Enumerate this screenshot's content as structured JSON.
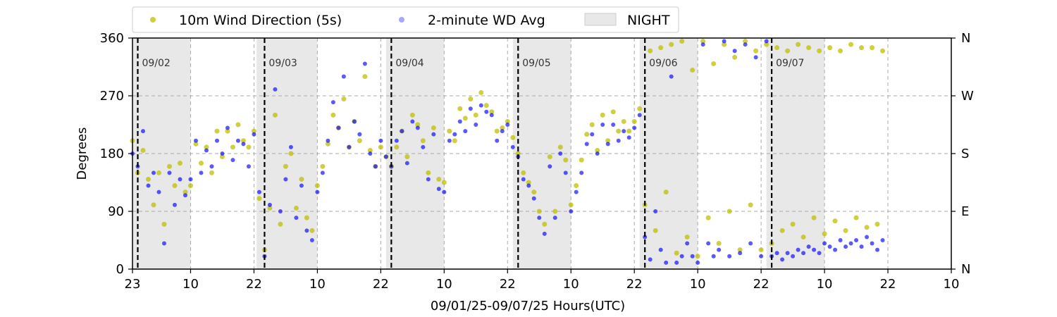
{
  "chart_data": {
    "type": "scatter",
    "xlabel": "09/01/25-09/07/25  Hours(UTC)",
    "ylabel": "Degrees",
    "ylim": [
      0,
      360
    ],
    "xlim_hours_since_first_tick": [
      0,
      155
    ],
    "x_tick_labels": [
      "23",
      "10",
      "22",
      "10",
      "22",
      "10",
      "22",
      "10",
      "22",
      "10",
      "22",
      "10",
      "22",
      "10"
    ],
    "x_tick_hours": [
      0,
      11,
      23,
      35,
      47,
      59,
      71,
      83,
      95,
      107,
      119,
      131,
      143,
      155
    ],
    "y_ticks": [
      0,
      90,
      180,
      270,
      360
    ],
    "y_tick_labels": [
      "0",
      "90",
      "180",
      "270",
      "360"
    ],
    "right_axis_labels": [
      "N",
      "E",
      "S",
      "W",
      "N"
    ],
    "grid": true,
    "legend_position": "top",
    "legend": [
      "10m Wind Direction (5s)",
      "2-minute WD Avg",
      "NIGHT"
    ],
    "day_labels": [
      "09/02",
      "09/03",
      "09/04",
      "09/05",
      "09/06",
      "09/07"
    ],
    "day_boundary_hours": [
      1,
      25,
      49,
      73,
      97,
      121
    ],
    "night_periods_hours": [
      [
        0,
        11
      ],
      [
        23.5,
        35
      ],
      [
        48,
        59
      ],
      [
        72,
        83
      ],
      [
        96,
        107
      ],
      [
        120,
        131
      ]
    ],
    "series": [
      {
        "name": "10m Wind Direction (5s)",
        "color": "#bfbf00",
        "points": [
          [
            0,
            200
          ],
          [
            1,
            150
          ],
          [
            2,
            185
          ],
          [
            3,
            140
          ],
          [
            4,
            100
          ],
          [
            5,
            150
          ],
          [
            6,
            70
          ],
          [
            7,
            160
          ],
          [
            8,
            130
          ],
          [
            9,
            165
          ],
          [
            10,
            120
          ],
          [
            11,
            130
          ],
          [
            12,
            195
          ],
          [
            13,
            165
          ],
          [
            14,
            190
          ],
          [
            15,
            150
          ],
          [
            16,
            215
          ],
          [
            17,
            175
          ],
          [
            18,
            215
          ],
          [
            19,
            190
          ],
          [
            20,
            225
          ],
          [
            21,
            200
          ],
          [
            22,
            190
          ],
          [
            23,
            215
          ],
          [
            24,
            110
          ],
          [
            25,
            30
          ],
          [
            26,
            95
          ],
          [
            27,
            240
          ],
          [
            28,
            70
          ],
          [
            29,
            160
          ],
          [
            30,
            180
          ],
          [
            31,
            95
          ],
          [
            32,
            140
          ],
          [
            33,
            80
          ],
          [
            34,
            60
          ],
          [
            35,
            130
          ],
          [
            36,
            160
          ],
          [
            37,
            195
          ],
          [
            38,
            240
          ],
          [
            39,
            220
          ],
          [
            40,
            265
          ],
          [
            41,
            190
          ],
          [
            42,
            230
          ],
          [
            43,
            200
          ],
          [
            44,
            300
          ],
          [
            45,
            185
          ],
          [
            46,
            160
          ],
          [
            47,
            190
          ],
          [
            48,
            175
          ],
          [
            49,
            160
          ],
          [
            50,
            190
          ],
          [
            51,
            215
          ],
          [
            52,
            175
          ],
          [
            53,
            240
          ],
          [
            54,
            225
          ],
          [
            55,
            200
          ],
          [
            56,
            150
          ],
          [
            57,
            220
          ],
          [
            58,
            140
          ],
          [
            59,
            135
          ],
          [
            60,
            215
          ],
          [
            61,
            200
          ],
          [
            62,
            250
          ],
          [
            63,
            235
          ],
          [
            64,
            265
          ],
          [
            65,
            240
          ],
          [
            66,
            275
          ],
          [
            67,
            255
          ],
          [
            68,
            245
          ],
          [
            69,
            215
          ],
          [
            70,
            220
          ],
          [
            71,
            230
          ],
          [
            72,
            205
          ],
          [
            73,
            180
          ],
          [
            74,
            150
          ],
          [
            75,
            135
          ],
          [
            76,
            120
          ],
          [
            77,
            90
          ],
          [
            78,
            70
          ],
          [
            79,
            175
          ],
          [
            80,
            90
          ],
          [
            81,
            190
          ],
          [
            82,
            170
          ],
          [
            83,
            100
          ],
          [
            84,
            130
          ],
          [
            85,
            170
          ],
          [
            86,
            210
          ],
          [
            87,
            225
          ],
          [
            88,
            185
          ],
          [
            89,
            240
          ],
          [
            90,
            200
          ],
          [
            91,
            245
          ],
          [
            92,
            215
          ],
          [
            93,
            230
          ],
          [
            94,
            215
          ],
          [
            95,
            230
          ],
          [
            96,
            250
          ],
          [
            97,
            100
          ],
          [
            98,
            340
          ],
          [
            99,
            60
          ],
          [
            100,
            345
          ],
          [
            101,
            120
          ],
          [
            102,
            350
          ],
          [
            103,
            25
          ],
          [
            104,
            355
          ],
          [
            105,
            50
          ],
          [
            106,
            310
          ],
          [
            107,
            20
          ],
          [
            108,
            355
          ],
          [
            109,
            80
          ],
          [
            110,
            320
          ],
          [
            111,
            40
          ],
          [
            112,
            350
          ],
          [
            113,
            90
          ],
          [
            114,
            330
          ],
          [
            115,
            30
          ],
          [
            116,
            355
          ],
          [
            117,
            100
          ],
          [
            118,
            340
          ],
          [
            119,
            30
          ],
          [
            120,
            350
          ],
          [
            121,
            40
          ],
          [
            122,
            345
          ],
          [
            123,
            60
          ],
          [
            124,
            340
          ],
          [
            125,
            70
          ],
          [
            126,
            350
          ],
          [
            127,
            50
          ],
          [
            128,
            345
          ],
          [
            129,
            80
          ],
          [
            130,
            340
          ],
          [
            131,
            55
          ],
          [
            132,
            345
          ],
          [
            133,
            75
          ],
          [
            134,
            340
          ],
          [
            135,
            60
          ],
          [
            136,
            350
          ],
          [
            137,
            80
          ],
          [
            138,
            345
          ],
          [
            139,
            65
          ],
          [
            140,
            345
          ],
          [
            141,
            70
          ],
          [
            142,
            340
          ]
        ]
      },
      {
        "name": "2-minute WD Avg",
        "color": "#0000ff",
        "points": [
          [
            0,
            180
          ],
          [
            1,
            160
          ],
          [
            2,
            215
          ],
          [
            3,
            130
          ],
          [
            4,
            150
          ],
          [
            5,
            120
          ],
          [
            6,
            40
          ],
          [
            7,
            150
          ],
          [
            8,
            100
          ],
          [
            9,
            140
          ],
          [
            10,
            115
          ],
          [
            11,
            140
          ],
          [
            12,
            200
          ],
          [
            13,
            150
          ],
          [
            14,
            185
          ],
          [
            15,
            160
          ],
          [
            16,
            200
          ],
          [
            17,
            180
          ],
          [
            18,
            220
          ],
          [
            19,
            170
          ],
          [
            20,
            200
          ],
          [
            21,
            195
          ],
          [
            22,
            160
          ],
          [
            23,
            210
          ],
          [
            24,
            120
          ],
          [
            25,
            20
          ],
          [
            26,
            100
          ],
          [
            27,
            280
          ],
          [
            28,
            90
          ],
          [
            29,
            140
          ],
          [
            30,
            190
          ],
          [
            31,
            80
          ],
          [
            32,
            130
          ],
          [
            33,
            60
          ],
          [
            34,
            45
          ],
          [
            35,
            120
          ],
          [
            36,
            150
          ],
          [
            37,
            200
          ],
          [
            38,
            260
          ],
          [
            39,
            220
          ],
          [
            40,
            300
          ],
          [
            41,
            190
          ],
          [
            42,
            230
          ],
          [
            43,
            210
          ],
          [
            44,
            320
          ],
          [
            45,
            180
          ],
          [
            46,
            160
          ],
          [
            47,
            200
          ],
          [
            48,
            175
          ],
          [
            49,
            160
          ],
          [
            50,
            200
          ],
          [
            51,
            215
          ],
          [
            52,
            165
          ],
          [
            53,
            230
          ],
          [
            54,
            220
          ],
          [
            55,
            190
          ],
          [
            56,
            140
          ],
          [
            57,
            210
          ],
          [
            58,
            125
          ],
          [
            59,
            120
          ],
          [
            60,
            200
          ],
          [
            61,
            210
          ],
          [
            62,
            230
          ],
          [
            63,
            215
          ],
          [
            64,
            250
          ],
          [
            65,
            225
          ],
          [
            66,
            255
          ],
          [
            67,
            245
          ],
          [
            68,
            240
          ],
          [
            69,
            200
          ],
          [
            70,
            215
          ],
          [
            71,
            225
          ],
          [
            72,
            190
          ],
          [
            73,
            175
          ],
          [
            74,
            140
          ],
          [
            75,
            130
          ],
          [
            76,
            110
          ],
          [
            77,
            80
          ],
          [
            78,
            55
          ],
          [
            79,
            160
          ],
          [
            80,
            80
          ],
          [
            81,
            180
          ],
          [
            82,
            150
          ],
          [
            83,
            90
          ],
          [
            84,
            120
          ],
          [
            85,
            150
          ],
          [
            86,
            195
          ],
          [
            87,
            210
          ],
          [
            88,
            180
          ],
          [
            89,
            225
          ],
          [
            90,
            195
          ],
          [
            91,
            225
          ],
          [
            92,
            200
          ],
          [
            93,
            215
          ],
          [
            94,
            205
          ],
          [
            95,
            220
          ],
          [
            96,
            240
          ],
          [
            97,
            50
          ],
          [
            98,
            15
          ],
          [
            99,
            90
          ],
          [
            100,
            30
          ],
          [
            101,
            10
          ],
          [
            102,
            300
          ],
          [
            103,
            10
          ],
          [
            104,
            20
          ],
          [
            105,
            40
          ],
          [
            106,
            20
          ],
          [
            107,
            10
          ],
          [
            108,
            350
          ],
          [
            109,
            40
          ],
          [
            110,
            20
          ],
          [
            111,
            30
          ],
          [
            112,
            355
          ],
          [
            113,
            20
          ],
          [
            114,
            340
          ],
          [
            115,
            25
          ],
          [
            116,
            350
          ],
          [
            117,
            40
          ],
          [
            118,
            330
          ],
          [
            119,
            20
          ],
          [
            120,
            355
          ],
          [
            121,
            20
          ],
          [
            122,
            25
          ],
          [
            123,
            15
          ],
          [
            124,
            25
          ],
          [
            125,
            20
          ],
          [
            126,
            30
          ],
          [
            127,
            25
          ],
          [
            128,
            35
          ],
          [
            129,
            30
          ],
          [
            130,
            25
          ],
          [
            131,
            40
          ],
          [
            132,
            35
          ],
          [
            133,
            30
          ],
          [
            134,
            45
          ],
          [
            135,
            35
          ],
          [
            136,
            40
          ],
          [
            137,
            45
          ],
          [
            138,
            35
          ],
          [
            139,
            50
          ],
          [
            140,
            40
          ],
          [
            141,
            30
          ],
          [
            142,
            45
          ]
        ]
      }
    ]
  }
}
